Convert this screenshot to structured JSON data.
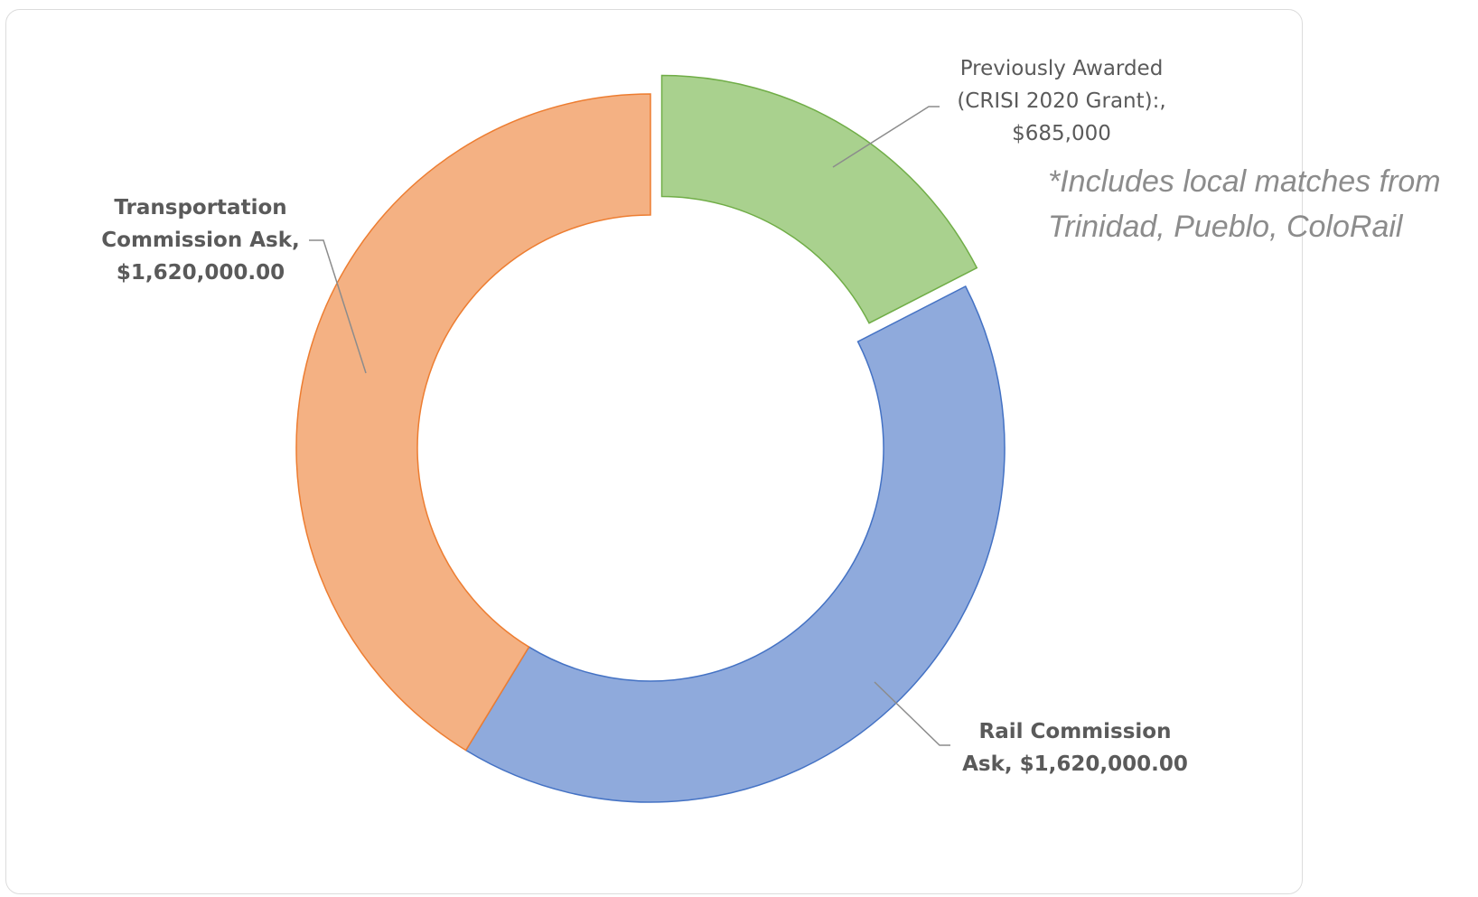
{
  "chart_data": {
    "type": "pie",
    "subtype": "donut",
    "slices": [
      {
        "label": "Previously Awarded (CRISI 2020 Grant):",
        "value": 685000,
        "display_value": "$685,000",
        "color": "#a9d18e",
        "stroke": "#70ad47",
        "exploded": true
      },
      {
        "label": "Rail Commission Ask",
        "value": 1620000,
        "display_value": "$1,620,000.00",
        "color": "#8faadc",
        "stroke": "#4472c4",
        "exploded": false
      },
      {
        "label": "Transportation Commission Ask",
        "value": 1620000,
        "display_value": "$1,620,000.00",
        "color": "#f4b183",
        "stroke": "#ed7d31",
        "exploded": false
      }
    ],
    "data_labels": {
      "awarded": [
        "Previously Awarded",
        "(CRISI 2020 Grant):,",
        "$685,000"
      ],
      "rail": [
        "Rail Commission",
        "Ask, $1,620,000.00"
      ],
      "transport": [
        "Transportation",
        "Commission Ask,",
        "$1,620,000.00"
      ]
    },
    "annotation": [
      "*Includes local matches from",
      "Trinidad, Pueblo, ColoRail"
    ]
  }
}
